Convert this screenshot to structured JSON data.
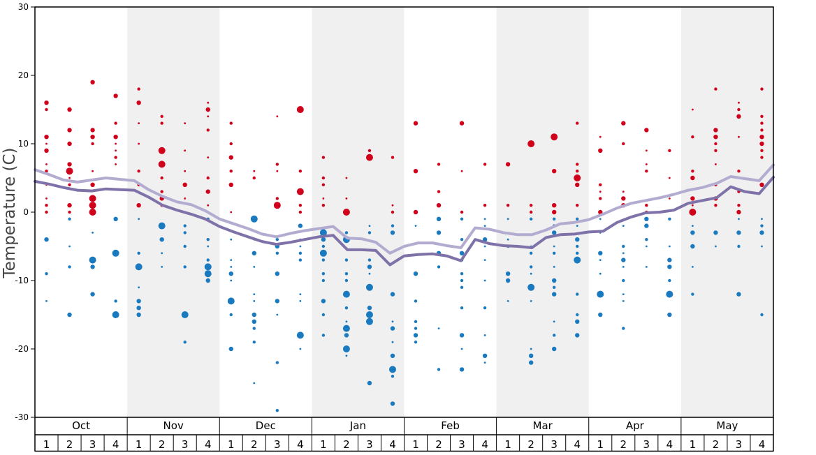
{
  "chart_data": {
    "type": "scatter",
    "title": "",
    "ylabel": "Temperature (C)",
    "xlabel": "",
    "ylim": [
      -30,
      30
    ],
    "yticks": [
      -30,
      -20,
      -10,
      0,
      10,
      20,
      30
    ],
    "months": [
      "Oct",
      "Nov",
      "Dec",
      "Jan",
      "Feb",
      "Mar",
      "Apr",
      "May"
    ],
    "week_labels": [
      "1",
      "2",
      "3",
      "4"
    ],
    "band_color": "#f0f0f0",
    "warm_color": "#d0021b",
    "cold_color": "#1a7abf",
    "dots_note": "observed temperatures per week (red ≥ 0, blue < 0); size ~ frequency",
    "series": [
      {
        "color": "#b3acd0",
        "values": [
          6.2,
          5.5,
          4.7,
          4.4,
          4.7,
          5.0,
          4.8,
          4.6,
          3.3,
          2.3,
          1.5,
          1.1,
          0.2,
          -1.0,
          -1.7,
          -2.4,
          -3.2,
          -3.6,
          -3.1,
          -2.7,
          -2.4,
          -2.1,
          -3.8,
          -3.9,
          -4.4,
          -6.0,
          -5.0,
          -4.5,
          -4.5,
          -4.9,
          -5.2,
          -2.3,
          -2.5,
          -3.0,
          -3.3,
          -3.3,
          -2.6,
          -1.7,
          -1.5,
          -1.1,
          -0.3,
          0.6,
          1.3,
          1.7,
          2.1,
          2.6,
          3.2,
          3.6,
          4.2,
          5.2,
          4.9,
          4.6,
          6.9
        ]
      },
      {
        "color": "#7e72a8",
        "values": [
          4.5,
          4.1,
          3.6,
          3.2,
          3.1,
          3.4,
          3.3,
          3.2,
          2.2,
          1.0,
          0.3,
          -0.3,
          -1.0,
          -2.1,
          -2.9,
          -3.6,
          -4.3,
          -4.7,
          -4.4,
          -4.0,
          -3.6,
          -3.4,
          -5.5,
          -5.5,
          -5.6,
          -7.7,
          -6.4,
          -6.2,
          -6.1,
          -6.4,
          -7.1,
          -4.0,
          -4.6,
          -4.9,
          -5.0,
          -5.2,
          -3.7,
          -3.3,
          -3.2,
          -2.9,
          -2.8,
          -1.5,
          -0.7,
          -0.1,
          0.0,
          0.3,
          1.3,
          1.7,
          2.1,
          3.7,
          3.0,
          2.7,
          5.1
        ]
      }
    ]
  }
}
